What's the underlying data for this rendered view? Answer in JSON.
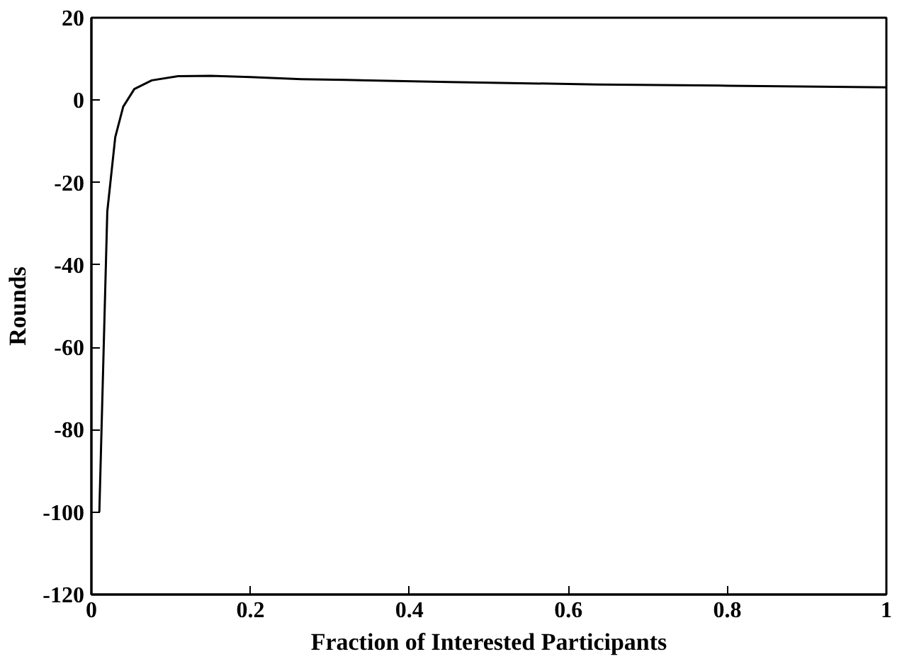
{
  "chart_data": {
    "type": "line",
    "xlabel": "Fraction of Interested Participants",
    "ylabel": "Rounds",
    "x": [
      0.01,
      0.02,
      0.03,
      0.04,
      0.054,
      0.076,
      0.109,
      0.15,
      0.2,
      0.264,
      0.32,
      0.45,
      0.636,
      0.8,
      1.0
    ],
    "series": [
      {
        "color": "#000000",
        "values": [
          -100,
          -27,
          -9,
          -1.6,
          2.7,
          4.8,
          5.8,
          5.9,
          5.6,
          5.1,
          4.9,
          4.4,
          3.8,
          3.5,
          3.1
        ]
      }
    ],
    "xlim": [
      0,
      1
    ],
    "ylim": [
      -120,
      20
    ],
    "xticks": [
      0,
      0.2,
      0.4,
      0.6,
      0.8,
      1
    ],
    "yticks": [
      -120,
      -100,
      -80,
      -60,
      -40,
      -20,
      0,
      20
    ],
    "grid": false,
    "marker": "none",
    "line_style": "solid"
  }
}
